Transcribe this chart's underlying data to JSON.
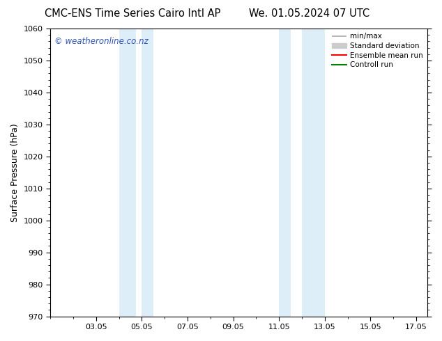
{
  "title_left": "CMC-ENS Time Series Cairo Intl AP",
  "title_right": "We. 01.05.2024 07 UTC",
  "ylabel": "Surface Pressure (hPa)",
  "ylim": [
    970,
    1060
  ],
  "yticks": [
    970,
    980,
    990,
    1000,
    1010,
    1020,
    1030,
    1040,
    1050,
    1060
  ],
  "xlim_start": 1.0,
  "xlim_end": 17.5,
  "xtick_labels": [
    "03.05",
    "05.05",
    "07.05",
    "09.05",
    "11.05",
    "13.05",
    "15.05",
    "17.05"
  ],
  "xtick_days": [
    3,
    5,
    7,
    9,
    11,
    13,
    15,
    17
  ],
  "shaded_regions": [
    {
      "start_day": 4.0,
      "end_day": 4.75,
      "color": "#ddeef8"
    },
    {
      "start_day": 5.0,
      "end_day": 5.5,
      "color": "#ddeef8"
    },
    {
      "start_day": 11.0,
      "end_day": 11.5,
      "color": "#ddeef8"
    },
    {
      "start_day": 12.0,
      "end_day": 13.0,
      "color": "#ddeef8"
    }
  ],
  "watermark_text": "© weatheronline.co.nz",
  "watermark_color": "#3355bb",
  "watermark_fontsize": 8.5,
  "background_color": "#ffffff",
  "title_fontsize": 10.5,
  "axis_label_fontsize": 9,
  "tick_fontsize": 8,
  "legend_fontsize": 7.5,
  "minmax_color": "#aaaaaa",
  "stddev_color": "#cccccc",
  "ensemble_color": "red",
  "control_color": "green"
}
